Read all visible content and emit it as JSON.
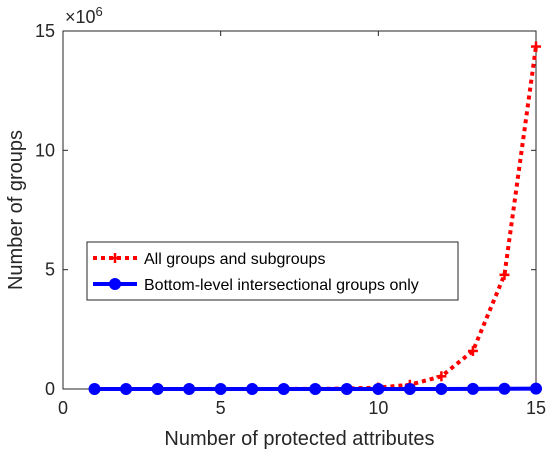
{
  "chart_data": {
    "type": "line",
    "title": "",
    "xlabel": "Number of protected attributes",
    "ylabel": "Number of groups",
    "y_exponent_label": "×10",
    "y_exponent_power": "6",
    "xlim": [
      0,
      15
    ],
    "ylim": [
      0,
      15
    ],
    "y_scale_note": "y values in units of 10^6",
    "x_ticks": [
      0,
      5,
      10,
      15
    ],
    "y_ticks": [
      0,
      5,
      10,
      15
    ],
    "x_tick_labels": [
      "0",
      "5",
      "10",
      "15"
    ],
    "y_tick_labels": [
      "0",
      "5",
      "10",
      "15"
    ],
    "grid": false,
    "legend_position": "center-left",
    "x": [
      1,
      2,
      3,
      4,
      5,
      6,
      7,
      8,
      9,
      10,
      11,
      12,
      13,
      14,
      15
    ],
    "series": [
      {
        "name": "All groups and subgroups",
        "color": "#ff0000",
        "line_style": "dotted",
        "marker": "plus",
        "values": [
          2e-06,
          8e-06,
          2.6e-05,
          8e-05,
          0.000242,
          0.000728,
          0.002186,
          0.00656,
          0.019682,
          0.059048,
          0.177146,
          0.53144,
          1.594322,
          4.782968,
          14.348906
        ]
      },
      {
        "name": "Bottom-level intersectional groups only",
        "color": "#0000ff",
        "line_style": "solid",
        "marker": "circle",
        "values": [
          1e-06,
          2e-06,
          4e-06,
          8e-06,
          1.6e-05,
          3.2e-05,
          6.4e-05,
          0.000128,
          0.000256,
          0.000512,
          0.001024,
          0.002048,
          0.004096,
          0.008192,
          0.016384
        ]
      }
    ]
  }
}
